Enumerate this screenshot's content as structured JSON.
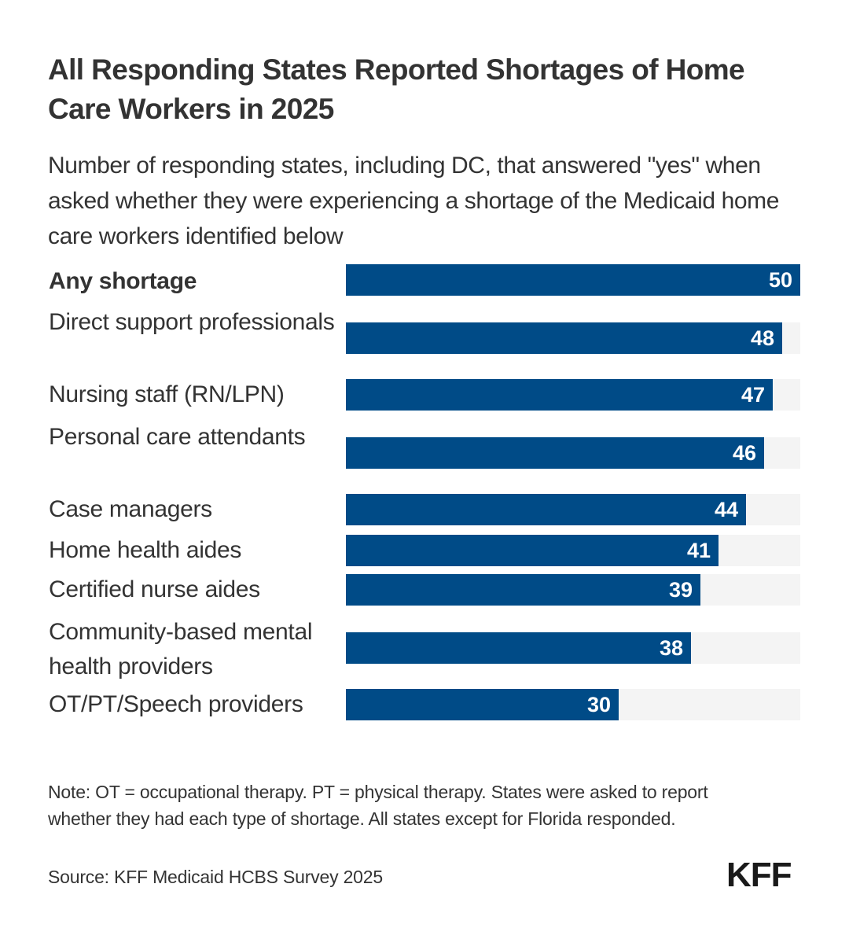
{
  "header": {
    "title": "All Responding States Reported Shortages of Home Care Workers in 2025",
    "subtitle": "Number of responding states, including DC, that answered \"yes\" when asked whether they were experiencing a shortage of the Medicaid home care workers identified below"
  },
  "chart_data": {
    "type": "bar",
    "orientation": "horizontal",
    "title": "All Responding States Reported Shortages of Home Care Workers in 2025",
    "subtitle": "Number of responding states, including DC, that answered \"yes\" when asked whether they were experiencing a shortage of the Medicaid home care workers identified below",
    "categories": [
      "Any shortage",
      "Direct support professionals",
      "Nursing staff (RN/LPN)",
      "Personal care attendants",
      "Case managers",
      "Home health aides",
      "Certified nurse aides",
      "Community-based mental health providers",
      "OT/PT/Speech providers"
    ],
    "values": [
      50,
      48,
      47,
      46,
      44,
      41,
      39,
      38,
      30
    ],
    "xlim": [
      0,
      50
    ],
    "xlabel": "",
    "ylabel": "",
    "grid": false,
    "legend": "none",
    "data_labels": true,
    "bold_categories": [
      "Any shortage"
    ],
    "colors": {
      "bar": "#004b87",
      "track": "#f4f4f4",
      "label": "#ffffff"
    }
  },
  "footer": {
    "note": "Note: OT = occupational therapy. PT = physical therapy. States were asked to report whether they had each type of shortage. All states except for Florida responded.",
    "source": "Source: KFF Medicaid HCBS Survey 2025",
    "logo": "KFF"
  }
}
